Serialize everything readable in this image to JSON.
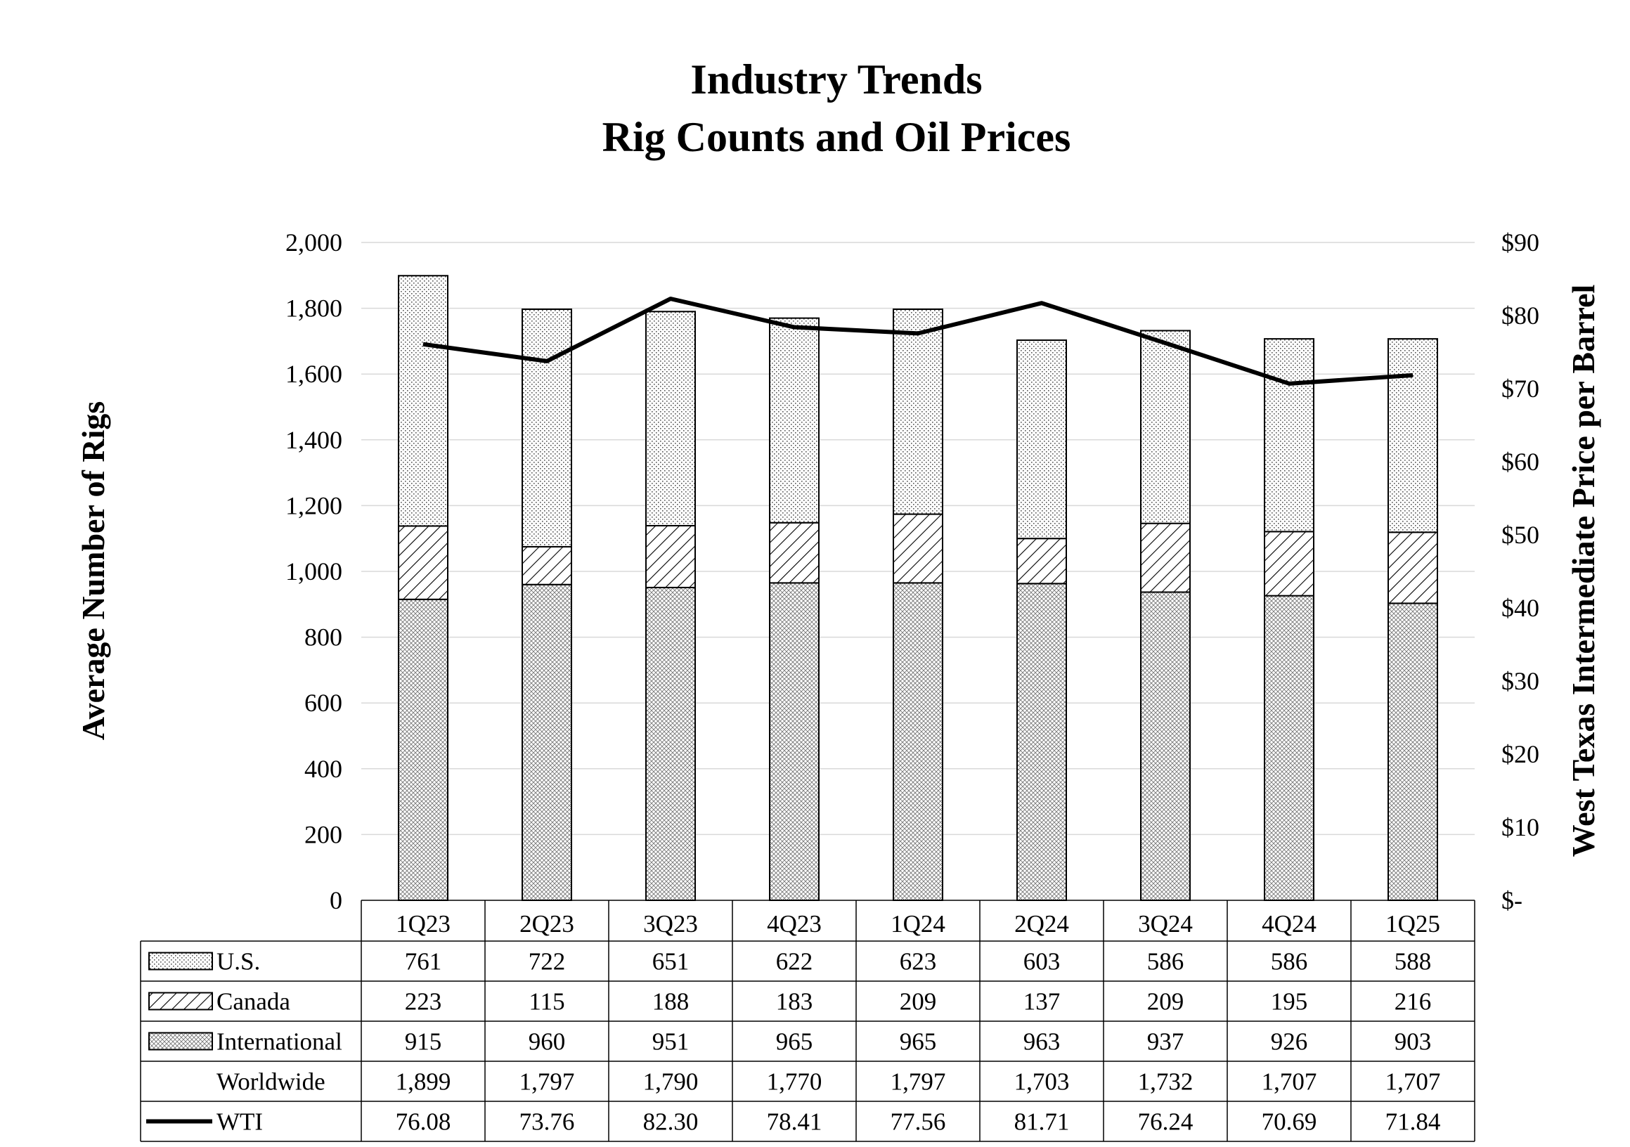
{
  "title_line1": "Industry Trends",
  "title_line2": "Rig Counts and Oil Prices",
  "chart_data": {
    "type": "bar",
    "stacked": true,
    "categories": [
      "1Q23",
      "2Q23",
      "3Q23",
      "4Q23",
      "1Q24",
      "2Q24",
      "3Q24",
      "4Q24",
      "1Q25"
    ],
    "series": [
      {
        "name": "International",
        "values": [
          915,
          960,
          951,
          965,
          965,
          963,
          937,
          926,
          903
        ],
        "pattern": "crosshatch"
      },
      {
        "name": "Canada",
        "values": [
          223,
          115,
          188,
          183,
          209,
          137,
          209,
          195,
          216
        ],
        "pattern": "diagonal"
      },
      {
        "name": "U.S.",
        "values": [
          761,
          722,
          651,
          622,
          623,
          603,
          586,
          586,
          588
        ],
        "pattern": "dots"
      }
    ],
    "worldwide": {
      "name": "Worldwide",
      "values": [
        "1,899",
        "1,797",
        "1,790",
        "1,770",
        "1,797",
        "1,703",
        "1,732",
        "1,707",
        "1,707"
      ]
    },
    "line_series": {
      "name": "WTI",
      "values": [
        76.08,
        73.76,
        82.3,
        78.41,
        77.56,
        81.71,
        76.24,
        70.69,
        71.84
      ],
      "axis": "right"
    },
    "ylabel": "Average Number of Rigs",
    "y2label": "West Texas Intermediate Price per Barrel",
    "ylim": [
      0,
      2000
    ],
    "y2lim": [
      0,
      90
    ],
    "yticks": [
      "0",
      "200",
      "400",
      "600",
      "800",
      "1,000",
      "1,200",
      "1,400",
      "1,600",
      "1,800",
      "2,000"
    ],
    "y2ticks": [
      "$-",
      "$10",
      "$20",
      "$30",
      "$40",
      "$50",
      "$60",
      "$70",
      "$80",
      "$90"
    ],
    "grid": true,
    "legend": "data-table",
    "colors": {
      "line": "#000000",
      "bar_stroke": "#000000",
      "grid": "#d9d9d9"
    }
  }
}
